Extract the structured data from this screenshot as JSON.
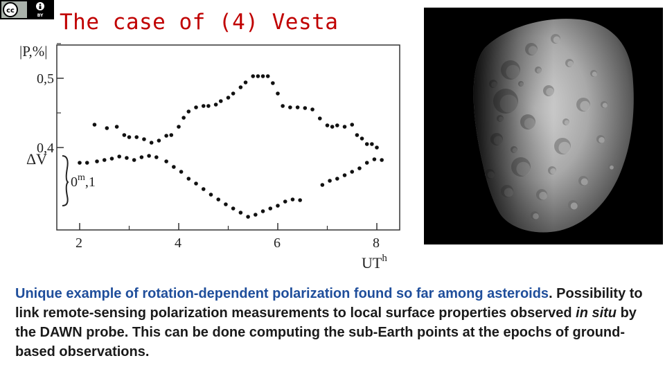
{
  "license_badge": {
    "icon": "cc-by-icon",
    "letters": "BY"
  },
  "slide_title": "The case of (4) Vesta",
  "chart_data": {
    "type": "scatter",
    "ylabel_top": "|P,%|",
    "ylabel_mid": "ΔV",
    "scale_bar_label": "0",
    "scale_bar_sup": "m",
    "scale_bar_tail": ",1",
    "xlabel": "UT",
    "xlabel_sup": "h",
    "xlim": [
      1.6,
      8.5
    ],
    "x_ticks": [
      2,
      4,
      6,
      8
    ],
    "x_tick_labels": [
      "2",
      "4",
      "6",
      "8"
    ],
    "y_ticks": [
      0.4,
      0.5
    ],
    "y_tick_labels": [
      "0,4",
      "0,5"
    ],
    "grid": false,
    "series": [
      {
        "x": [
          2.3,
          2.55,
          2.75,
          2.9,
          3.0,
          3.15,
          3.3,
          3.45,
          3.6,
          3.75,
          3.85,
          4.0,
          4.1,
          4.2,
          4.35,
          4.5,
          4.6,
          4.75,
          4.85,
          5.0,
          5.1,
          5.25,
          5.35,
          5.5,
          5.6,
          5.7,
          5.8,
          5.9,
          6.0,
          6.1,
          6.25,
          6.4,
          6.55,
          6.7,
          6.85,
          7.0,
          7.1,
          7.2,
          7.35,
          7.5,
          7.6,
          7.7,
          7.8,
          7.9,
          8.0
        ],
        "y": [
          0.433,
          0.428,
          0.43,
          0.418,
          0.415,
          0.415,
          0.412,
          0.407,
          0.41,
          0.417,
          0.418,
          0.43,
          0.443,
          0.452,
          0.458,
          0.46,
          0.46,
          0.462,
          0.467,
          0.472,
          0.478,
          0.487,
          0.494,
          0.503,
          0.503,
          0.503,
          0.503,
          0.493,
          0.478,
          0.46,
          0.458,
          0.458,
          0.457,
          0.455,
          0.442,
          0.432,
          0.43,
          0.432,
          0.43,
          0.433,
          0.418,
          0.413,
          0.405,
          0.405,
          0.4
        ]
      },
      {
        "x": [
          2.0,
          2.15,
          2.35,
          2.5,
          2.65,
          2.8,
          2.95,
          3.1,
          3.25,
          3.4,
          3.55,
          3.75,
          3.9,
          4.05,
          4.2,
          4.35,
          4.5,
          4.65,
          4.8,
          4.95,
          5.1,
          5.25,
          5.4,
          5.55,
          5.7,
          5.85,
          6.0,
          6.15,
          6.3,
          6.45,
          6.9,
          7.05,
          7.2,
          7.35,
          7.5,
          7.65,
          7.8,
          7.95,
          8.1
        ],
        "y": [
          0.378,
          0.378,
          0.38,
          0.382,
          0.384,
          0.387,
          0.385,
          0.382,
          0.386,
          0.388,
          0.386,
          0.38,
          0.372,
          0.365,
          0.355,
          0.348,
          0.34,
          0.332,
          0.325,
          0.318,
          0.312,
          0.306,
          0.3,
          0.303,
          0.308,
          0.312,
          0.316,
          0.322,
          0.325,
          0.324,
          0.346,
          0.352,
          0.355,
          0.36,
          0.365,
          0.37,
          0.378,
          0.383,
          0.382
        ]
      }
    ]
  },
  "photo": {
    "description_name": "vesta-asteroid-photo"
  },
  "caption": {
    "blue_part": "Unique example of rotation-dependent polarization found so far among asteroids",
    "part2": ". Possibility to link remote-sensing polarization measurements to local surface properties observed ",
    "italic": "in situ",
    "part3": " by the DAWN probe. This can be done computing the sub-Earth points at the epochs of ground-based observations."
  },
  "colors": {
    "title": "#c00000",
    "caption_blue": "#1f4e9b",
    "caption_text": "#1a1a1a"
  }
}
